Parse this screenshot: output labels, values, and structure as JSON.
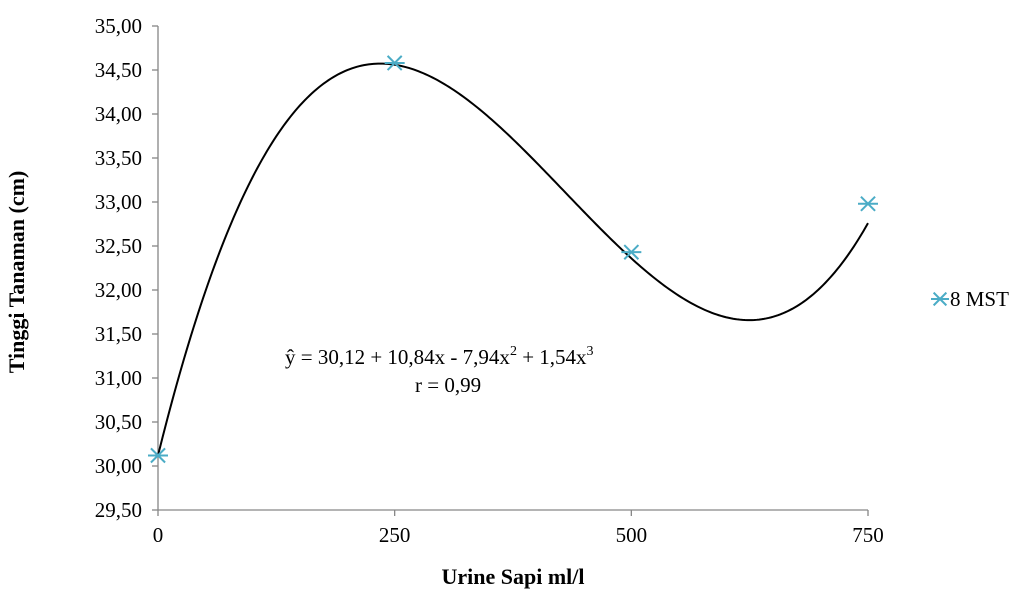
{
  "chart_data": {
    "type": "scatter",
    "xlabel": "Urine Sapi ml/l",
    "ylabel": "Tinggi Tanaman (cm)",
    "ylim": [
      29.5,
      35.0
    ],
    "xlim": [
      0,
      750
    ],
    "x_ticks": [
      "0",
      "250",
      "500",
      "750"
    ],
    "x_tick_values": [
      0,
      250,
      500,
      750
    ],
    "y_ticks": [
      "29,50",
      "30,00",
      "30,50",
      "31,00",
      "31,50",
      "32,00",
      "32,50",
      "33,00",
      "33,50",
      "34,00",
      "34,50",
      "35,00"
    ],
    "y_tick_values": [
      29.5,
      30.0,
      30.5,
      31.0,
      31.5,
      32.0,
      32.5,
      33.0,
      33.5,
      34.0,
      34.5,
      35.0
    ],
    "series": [
      {
        "name": "8 MST",
        "x": [
          0,
          250,
          500,
          750
        ],
        "y": [
          30.12,
          34.58,
          32.43,
          32.98
        ],
        "marker": "asterisk",
        "color": "#4BACC6"
      }
    ],
    "trendline": {
      "type": "polynomial",
      "degree": 3,
      "color": "#000000",
      "x_unit_divisor": 250,
      "coefficients": [
        30.12,
        10.84,
        -7.94,
        1.54
      ]
    },
    "annotations": {
      "equation": {
        "prefix": "ŷ = 30,12 + 10,84x - 7,94x",
        "sup1": "2",
        "mid": " + 1,54x",
        "sup2": "3"
      },
      "r": "r = 0,99"
    },
    "legend": {
      "position": "right",
      "label": "8 MST"
    },
    "grid": false
  }
}
